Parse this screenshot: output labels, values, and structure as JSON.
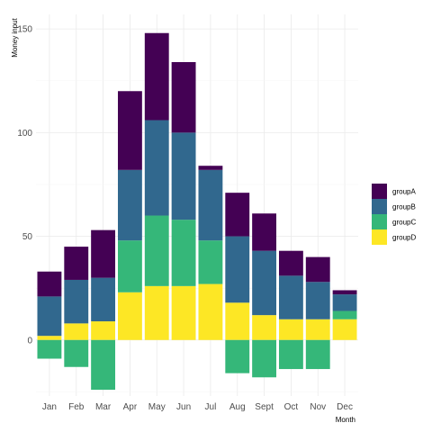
{
  "chart_data": {
    "type": "bar",
    "stacked": true,
    "categories": [
      "Jan",
      "Feb",
      "Mar",
      "Apr",
      "May",
      "Jun",
      "Jul",
      "Aug",
      "Sept",
      "Oct",
      "Nov",
      "Dec"
    ],
    "series": [
      {
        "name": "groupA",
        "color": "#440154",
        "values": [
          12,
          16,
          23,
          38,
          42,
          34,
          2,
          21,
          18,
          12,
          12,
          2
        ]
      },
      {
        "name": "groupB",
        "color": "#31688e",
        "values": [
          19,
          21,
          21,
          34,
          46,
          42,
          34,
          32,
          31,
          21,
          18,
          8
        ]
      },
      {
        "name": "groupC",
        "color": "#35b779",
        "values": [
          -9,
          -13,
          -24,
          25,
          34,
          32,
          21,
          -16,
          -18,
          -14,
          -14,
          4
        ]
      },
      {
        "name": "groupD",
        "color": "#fde725",
        "values": [
          2,
          8,
          9,
          23,
          26,
          26,
          27,
          18,
          12,
          10,
          10,
          10
        ]
      }
    ],
    "xlabel": "Month",
    "ylabel": "Money input",
    "yticks": [
      0,
      50,
      100,
      150
    ],
    "ylim": [
      -27,
      157
    ],
    "grid": true,
    "legend_position": "right"
  }
}
